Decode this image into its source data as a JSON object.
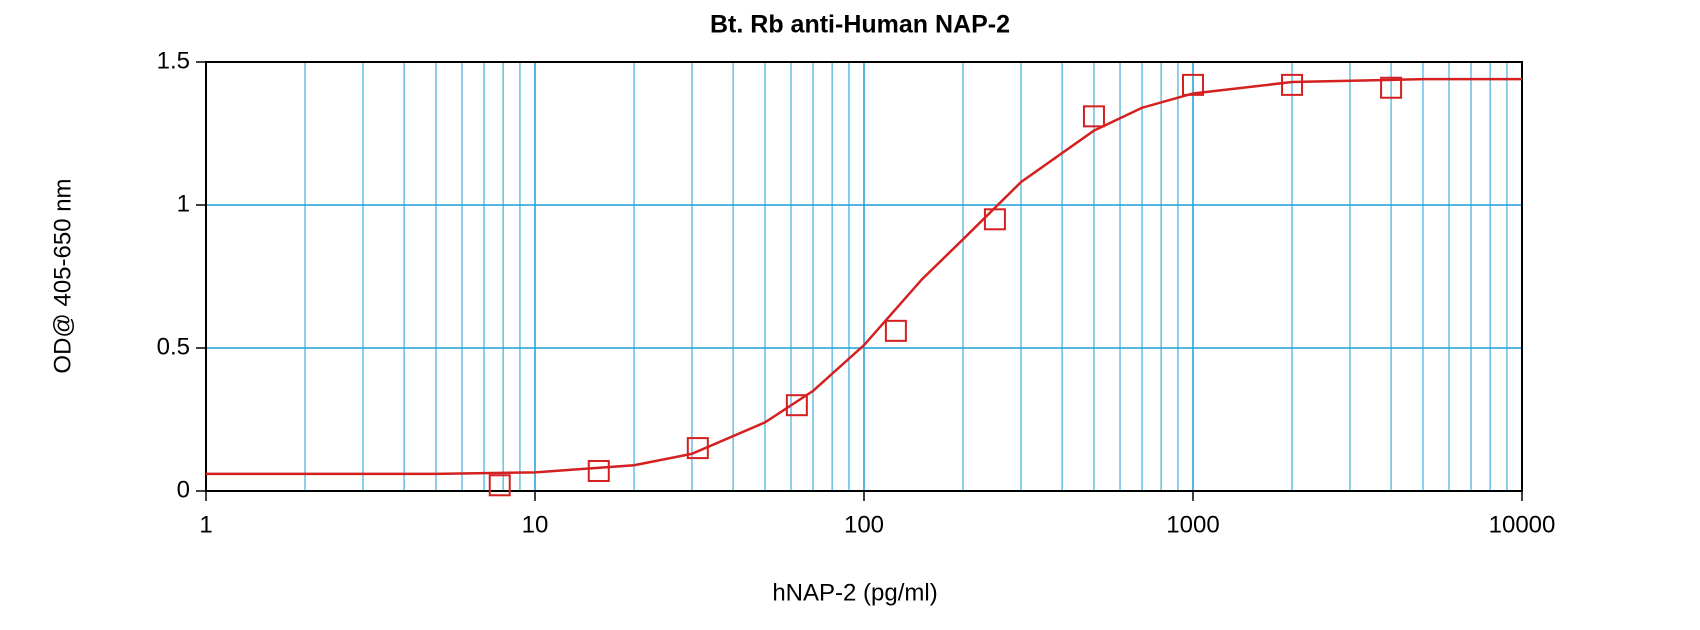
{
  "chart_data": {
    "type": "scatter",
    "title": "Bt. Rb anti-Human NAP-2",
    "x_label": "hNAP-2 (pg/ml)",
    "y_label": "OD@ 405-650 nm",
    "x_scale": "log",
    "grid": true,
    "xlim": [
      1,
      10000
    ],
    "xticks": [
      1,
      10,
      100,
      1000,
      10000
    ],
    "minor_xticks": [
      2,
      3,
      4,
      5,
      6,
      7,
      8,
      9,
      20,
      30,
      40,
      50,
      60,
      70,
      80,
      90,
      200,
      300,
      400,
      500,
      600,
      700,
      800,
      900,
      2000,
      3000,
      4000,
      5000,
      6000,
      7000,
      8000,
      9000
    ],
    "ylim": [
      0,
      1.5
    ],
    "yticks": [
      0,
      0.5,
      1,
      1.5
    ],
    "grid_color": "#1a9fd9",
    "series": [
      {
        "kind": "points",
        "color": "#d42020",
        "x": [
          7.8125,
          15.625,
          31.25,
          62.5,
          125,
          250,
          500,
          1000,
          2000,
          4000
        ],
        "values": [
          0.02,
          0.07,
          0.15,
          0.3,
          0.56,
          0.95,
          1.31,
          1.42,
          1.42,
          1.41
        ]
      },
      {
        "kind": "fit",
        "color": "#d42020",
        "x": [
          1,
          2,
          5,
          10,
          20,
          30,
          50,
          70,
          100,
          150,
          200,
          300,
          500,
          700,
          1000,
          2000,
          5000,
          10000
        ],
        "values": [
          0.06,
          0.06,
          0.06,
          0.065,
          0.09,
          0.13,
          0.24,
          0.35,
          0.51,
          0.74,
          0.88,
          1.08,
          1.26,
          1.34,
          1.39,
          1.43,
          1.44,
          1.44
        ]
      }
    ]
  }
}
